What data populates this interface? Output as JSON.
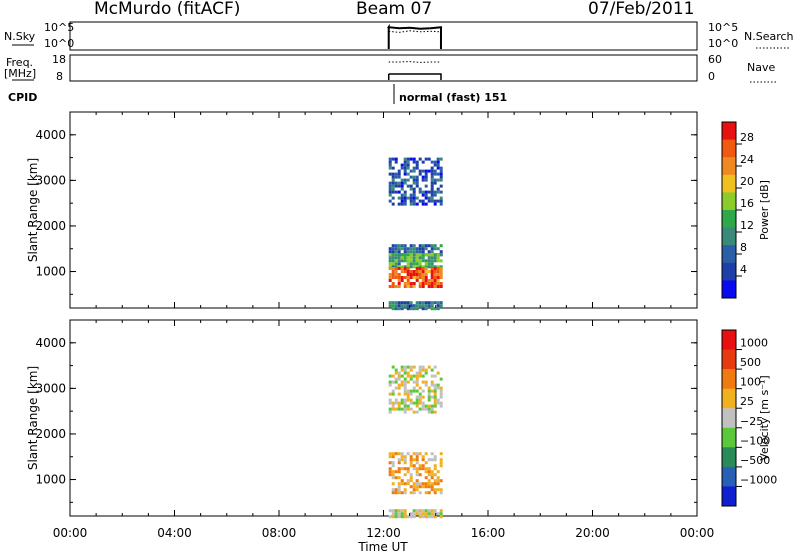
{
  "header": {
    "station": "McMurdo (fitACF)",
    "beam": "Beam 07",
    "date": "07/Feb/2011"
  },
  "strips": {
    "nsky_label": "N.Sky",
    "nsky_ticks": [
      "10^5",
      "10^0"
    ],
    "nsearch_label": "N.Search",
    "nsearch_ticks": [
      "10^5",
      "10^0"
    ],
    "freq_label_line1": "Freq.",
    "freq_label_line2": "[MHz]",
    "freq_ticks": [
      "18",
      "8"
    ],
    "nave_label": "Nave",
    "nave_ticks": [
      "60",
      "0"
    ],
    "cpid_label": "CPID",
    "cpid_value": "normal (fast) 151"
  },
  "xaxis": {
    "label": "Time UT",
    "ticks": [
      "00:00",
      "04:00",
      "08:00",
      "12:00",
      "16:00",
      "20:00",
      "00:00"
    ]
  },
  "power_panel": {
    "ylabel": "Slant Range [km]",
    "yticks": [
      "4000",
      "3000",
      "2000",
      "1000"
    ],
    "colorbar_label": "Power [dB]",
    "colorbar_ticks": [
      "28",
      "24",
      "20",
      "16",
      "12",
      "8",
      "4"
    ]
  },
  "velocity_panel": {
    "ylabel": "Slant Range [km]",
    "yticks": [
      "4000",
      "3000",
      "2000",
      "1000"
    ],
    "colorbar_label": "Velocity [m s⁻¹]",
    "colorbar_ticks": [
      "1000",
      "500",
      "100",
      "25",
      "−25",
      "−100",
      "−500",
      "−1000"
    ]
  },
  "colors": {
    "power_scale": [
      "#0a0af0",
      "#1e3fa8",
      "#2a5fa8",
      "#3a8a7a",
      "#2fa84a",
      "#8ccc2a",
      "#f0c020",
      "#f08a20",
      "#f05a10",
      "#e81010"
    ],
    "velocity_scale": [
      "#1020d0",
      "#2a5fb8",
      "#2a8a5a",
      "#5ac83a",
      "#c0c0c0",
      "#f0b020",
      "#f07a10",
      "#e83a10",
      "#e81010"
    ]
  },
  "chart_data": [
    {
      "type": "heatmap",
      "title": "Power",
      "xlabel": "Time UT",
      "ylabel": "Slant Range [km]",
      "xlim": [
        "00:00",
        "24:00"
      ],
      "ylim": [
        200,
        4500
      ],
      "colorbar": {
        "label": "Power [dB]",
        "range": [
          0,
          32
        ],
        "ticks": [
          4,
          8,
          12,
          16,
          20,
          24,
          28
        ]
      },
      "data_time_range": [
        "12:15",
        "14:15"
      ],
      "blobs": [
        {
          "t": [
            12.2,
            14.2
          ],
          "r": [
            2500,
            3500
          ],
          "power_db": 6
        },
        {
          "t": [
            12.2,
            14.2
          ],
          "r": [
            1400,
            1600
          ],
          "power_db": 8
        },
        {
          "t": [
            12.2,
            14.2
          ],
          "r": [
            1100,
            1400
          ],
          "power_db": 14
        },
        {
          "t": [
            12.2,
            14.2
          ],
          "r": [
            700,
            1100
          ],
          "power_db": 28
        },
        {
          "t": [
            12.2,
            14.2
          ],
          "r": [
            200,
            350
          ],
          "power_db": 8
        }
      ]
    },
    {
      "type": "heatmap",
      "title": "Velocity",
      "xlabel": "Time UT",
      "ylabel": "Slant Range [km]",
      "xlim": [
        "00:00",
        "24:00"
      ],
      "ylim": [
        200,
        4500
      ],
      "colorbar": {
        "label": "Velocity [m s⁻¹]",
        "range": [
          -1250,
          1250
        ],
        "ticks": [
          1000,
          500,
          100,
          25,
          -25,
          -100,
          -500,
          -1000
        ]
      },
      "data_time_range": [
        "12:15",
        "14:15"
      ],
      "blobs": [
        {
          "t": [
            12.2,
            14.2
          ],
          "r": [
            2500,
            3500
          ],
          "velocity": 0
        },
        {
          "t": [
            12.2,
            14.2
          ],
          "r": [
            700,
            1600
          ],
          "velocity": -100
        },
        {
          "t": [
            12.2,
            14.2
          ],
          "r": [
            200,
            350
          ],
          "velocity": 0
        }
      ]
    },
    {
      "type": "line",
      "title": "N.Sky / N.Search",
      "x_range": [
        "12:15",
        "14:15"
      ],
      "series": [
        {
          "name": "N.Sky",
          "values_log10": [
            4.2,
            4.0,
            4.1,
            3.9,
            4.0,
            4.2
          ]
        },
        {
          "name": "N.Search",
          "values_log10": [
            3.4,
            3.2,
            3.5,
            3.3,
            3.4,
            3.3
          ]
        }
      ]
    },
    {
      "type": "line",
      "title": "Freq. / Nave",
      "x_range": [
        "12:15",
        "14:15"
      ],
      "series": [
        {
          "name": "Freq.",
          "unit": "MHz",
          "values": [
            10.5,
            10.5,
            10.5,
            10.5,
            10.5,
            10.5
          ]
        },
        {
          "name": "Nave",
          "values": [
            45,
            45,
            46,
            44,
            45,
            45
          ]
        }
      ]
    }
  ]
}
